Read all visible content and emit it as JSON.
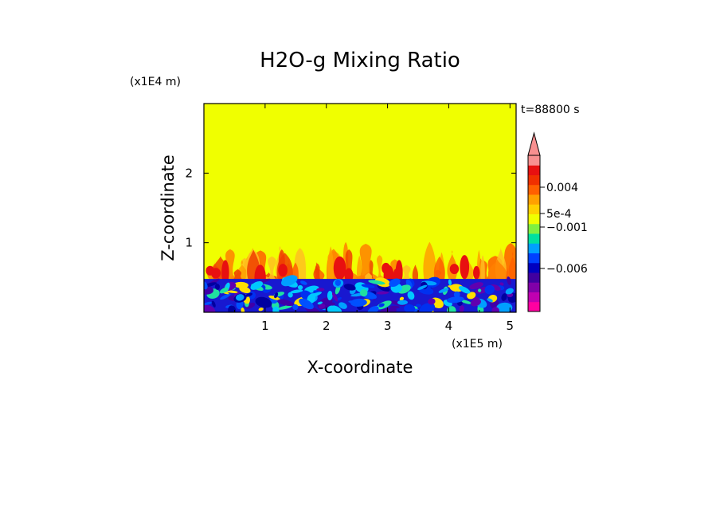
{
  "chart_data": {
    "type": "heatmap",
    "title": "H2O-g Mixing Ratio",
    "time_label": "t=88800 s",
    "xlabel": "X-coordinate",
    "ylabel": "Z-coordinate",
    "x_unit": "(x1E5 m)",
    "y_unit": "(x1E4 m)",
    "xlim": [
      0,
      5.1
    ],
    "ylim": [
      0,
      3.0
    ],
    "x_ticks": [
      "1",
      "2",
      "3",
      "4",
      "5"
    ],
    "x_tick_values": [
      1,
      2,
      3,
      4,
      5
    ],
    "y_ticks": [
      "1",
      "2"
    ],
    "y_tick_values": [
      1,
      2
    ],
    "field": {
      "background_level": "yellow",
      "layers": [
        {
          "name": "lower layer",
          "z_range": [
            0,
            0.48
          ],
          "dominant_colors": [
            "#1010c8",
            "#0030f0",
            "#00c8ff",
            "#20e0a0",
            "#ffe000"
          ]
        },
        {
          "name": "plume band",
          "z_range": [
            0.48,
            1.0
          ],
          "dominant_colors": [
            "#ffa000",
            "#ff6000",
            "#f02000"
          ]
        }
      ]
    },
    "colorbar": {
      "labels": [
        "0.004",
        "5e-4",
        "−0.001",
        "−0.006"
      ],
      "colors": [
        "#ff00a0",
        "#c000b0",
        "#8000a8",
        "#4000a0",
        "#0000c0",
        "#0040ff",
        "#00a0ff",
        "#00e0a0",
        "#80f040",
        "#f0ff00",
        "#ffd000",
        "#ffa000",
        "#ff6000",
        "#f03000",
        "#e81010",
        "#f89090"
      ],
      "extend": "max"
    }
  }
}
